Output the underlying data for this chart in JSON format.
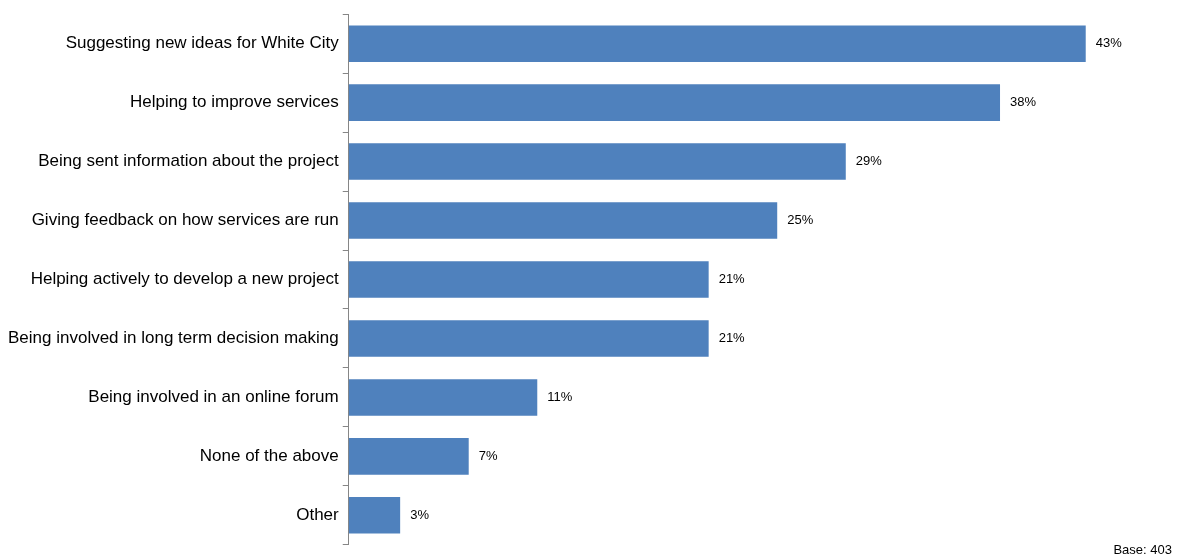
{
  "chart_data": {
    "type": "bar",
    "orientation": "horizontal",
    "categories": [
      "Suggesting new ideas for White City",
      "Helping to improve services",
      "Being sent information about the project",
      "Giving feedback on how services are run",
      "Helping actively to develop a new project",
      "Being involved in long term decision making",
      "Being involved in an online forum",
      "None of the above",
      "Other"
    ],
    "values": [
      43,
      38,
      29,
      25,
      21,
      21,
      11,
      7,
      3
    ],
    "value_labels": [
      "43%",
      "38%",
      "29%",
      "25%",
      "21%",
      "21%",
      "11%",
      "7%",
      "3%"
    ],
    "color": "#4f81bd",
    "annotations": [
      "Base: 403"
    ]
  }
}
